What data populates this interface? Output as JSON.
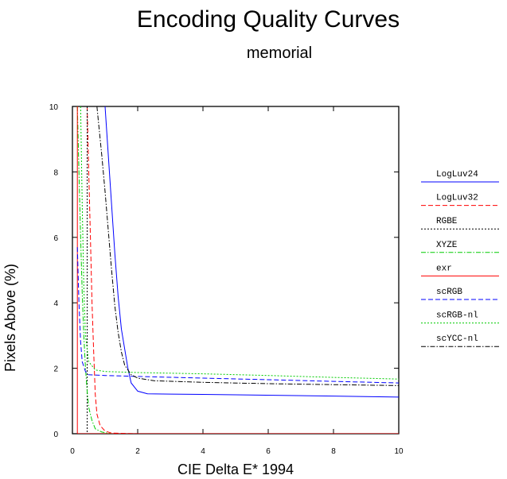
{
  "chart_data": {
    "type": "line",
    "title": "Encoding Quality Curves",
    "subtitle": "memorial",
    "xlabel": "CIE Delta E* 1994",
    "ylabel": "Pixels Above (%)",
    "xlim": [
      0,
      10
    ],
    "ylim": [
      0,
      10
    ],
    "xticks": [
      0,
      2,
      4,
      6,
      8,
      10
    ],
    "yticks": [
      0,
      2,
      4,
      6,
      8,
      10
    ],
    "grid": false,
    "legend_position": "right",
    "series": [
      {
        "name": "LogLuv24",
        "color": "#0000ff",
        "dash": "solid",
        "x": [
          1.0,
          1.1,
          1.2,
          1.3,
          1.4,
          1.5,
          1.6,
          1.7,
          1.8,
          2.0,
          2.3,
          3.0,
          5.0,
          8.0,
          10.0
        ],
        "y": [
          10.0,
          8.5,
          7.0,
          5.5,
          4.2,
          3.2,
          2.6,
          2.0,
          1.55,
          1.3,
          1.22,
          1.21,
          1.19,
          1.15,
          1.12
        ]
      },
      {
        "name": "LogLuv32",
        "color": "#ff0000",
        "dash": "dashed",
        "x": [
          0.45,
          0.5,
          0.55,
          0.6,
          0.65,
          0.7,
          0.75,
          0.85,
          1.0,
          1.2,
          2.0,
          10.0
        ],
        "y": [
          10.0,
          8.0,
          6.0,
          4.0,
          2.5,
          1.2,
          0.6,
          0.25,
          0.08,
          0.02,
          0.0,
          0.0
        ]
      },
      {
        "name": "RGBE",
        "color": "#000000",
        "dash": "dotted",
        "x": [
          0.45,
          0.45,
          10.0
        ],
        "y": [
          10.0,
          0.0,
          0.0
        ]
      },
      {
        "name": "XYZE",
        "color": "#00cc00",
        "dash": "dash-dot",
        "x": [
          0.15,
          0.2,
          0.25,
          0.3,
          0.35,
          0.4,
          0.45,
          0.5,
          0.6,
          0.7,
          0.9,
          1.2,
          10.0
        ],
        "y": [
          10.0,
          8.0,
          6.0,
          4.3,
          3.0,
          2.0,
          1.3,
          0.8,
          0.4,
          0.15,
          0.05,
          0.0,
          0.0
        ]
      },
      {
        "name": "exr",
        "color": "#ff0000",
        "dash": "solid",
        "x": [
          0.15,
          0.15,
          10.0
        ],
        "y": [
          10.0,
          0.0,
          0.0
        ]
      },
      {
        "name": "scRGB",
        "color": "#0000ff",
        "dash": "dashed",
        "x": [
          0.15,
          0.2,
          0.25,
          0.3,
          0.4,
          0.5,
          1.0,
          2.0,
          4.0,
          6.0,
          8.0,
          10.0
        ],
        "y": [
          5.7,
          4.0,
          2.8,
          2.2,
          1.9,
          1.8,
          1.78,
          1.75,
          1.7,
          1.65,
          1.6,
          1.55
        ]
      },
      {
        "name": "scRGB-nl",
        "color": "#00cc00",
        "dash": "dotted",
        "x": [
          0.25,
          0.3,
          0.35,
          0.4,
          0.5,
          0.7,
          1.0,
          2.0,
          4.0,
          6.0,
          8.0,
          10.0
        ],
        "y": [
          10.0,
          7.0,
          4.5,
          3.0,
          2.2,
          1.95,
          1.9,
          1.87,
          1.83,
          1.78,
          1.72,
          1.67
        ]
      },
      {
        "name": "scYCC-nl",
        "color": "#000000",
        "dash": "dash-dot",
        "x": [
          0.75,
          0.8,
          0.9,
          1.0,
          1.1,
          1.2,
          1.3,
          1.4,
          1.5,
          1.6,
          1.8,
          2.0,
          2.5,
          4.0,
          6.0,
          8.0,
          10.0
        ],
        "y": [
          10.0,
          9.5,
          8.5,
          7.4,
          6.2,
          5.0,
          3.9,
          3.1,
          2.5,
          2.1,
          1.8,
          1.7,
          1.62,
          1.57,
          1.53,
          1.5,
          1.47
        ]
      }
    ]
  }
}
